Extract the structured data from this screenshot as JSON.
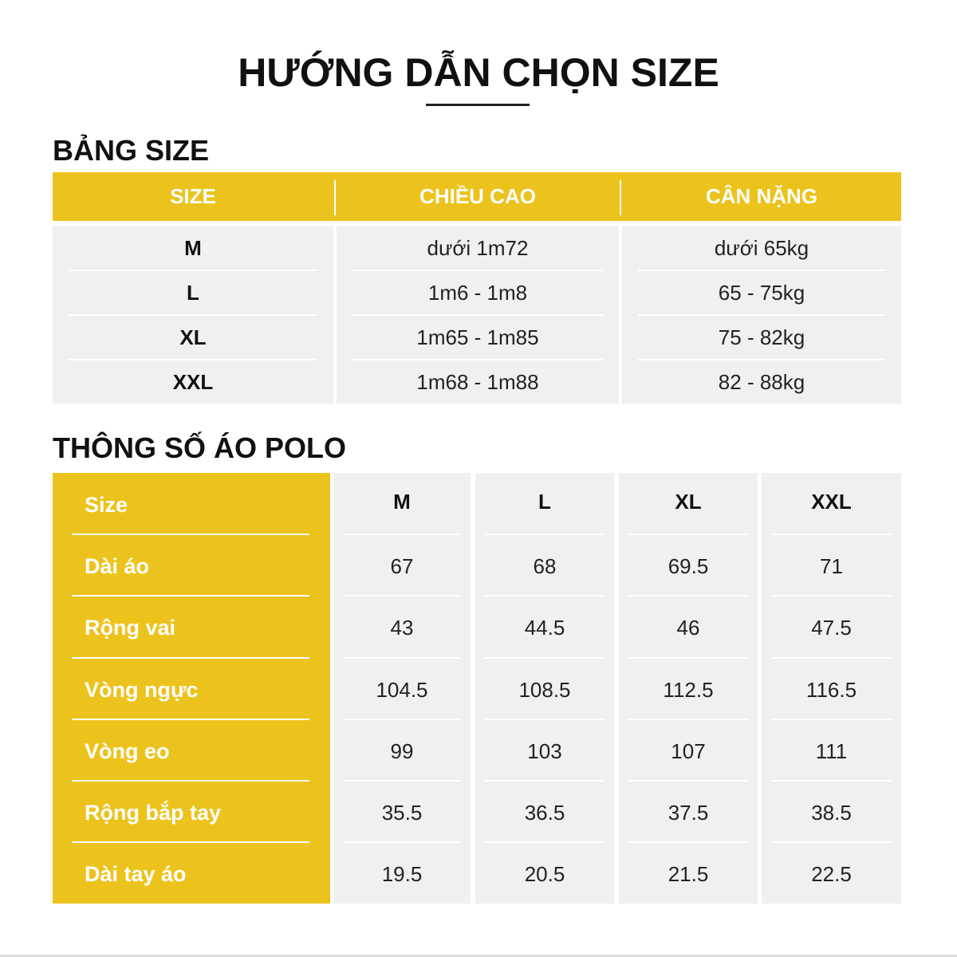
{
  "title": "HƯỚNG DẪN CHỌN SIZE",
  "size_table": {
    "heading": "BẢNG SIZE",
    "headers": [
      "SIZE",
      "CHIỀU CAO",
      "CÂN NẶNG"
    ],
    "rows": [
      [
        "M",
        "dưới 1m72",
        "dưới 65kg"
      ],
      [
        "L",
        "1m6 - 1m8",
        "65 - 75kg"
      ],
      [
        "XL",
        "1m65 - 1m85",
        "75 - 82kg"
      ],
      [
        "XXL",
        "1m68 - 1m88",
        "82 - 88kg"
      ]
    ]
  },
  "polo_table": {
    "heading": "THÔNG SỐ ÁO POLO",
    "row_labels": [
      "Size",
      "Dài áo",
      "Rộng vai",
      "Vòng ngực",
      "Vòng eo",
      "Rộng bắp tay",
      "Dài tay áo"
    ],
    "columns": [
      {
        "size": "M",
        "values": [
          "67",
          "43",
          "104.5",
          "99",
          "35.5",
          "19.5"
        ]
      },
      {
        "size": "L",
        "values": [
          "68",
          "44.5",
          "108.5",
          "103",
          "36.5",
          "20.5"
        ]
      },
      {
        "size": "XL",
        "values": [
          "69.5",
          "46",
          "112.5",
          "107",
          "37.5",
          "21.5"
        ]
      },
      {
        "size": "XXL",
        "values": [
          "71",
          "47.5",
          "116.5",
          "111",
          "38.5",
          "22.5"
        ]
      }
    ]
  },
  "colors": {
    "accent": "#ecc31c",
    "cell": "#f0f0f0"
  }
}
